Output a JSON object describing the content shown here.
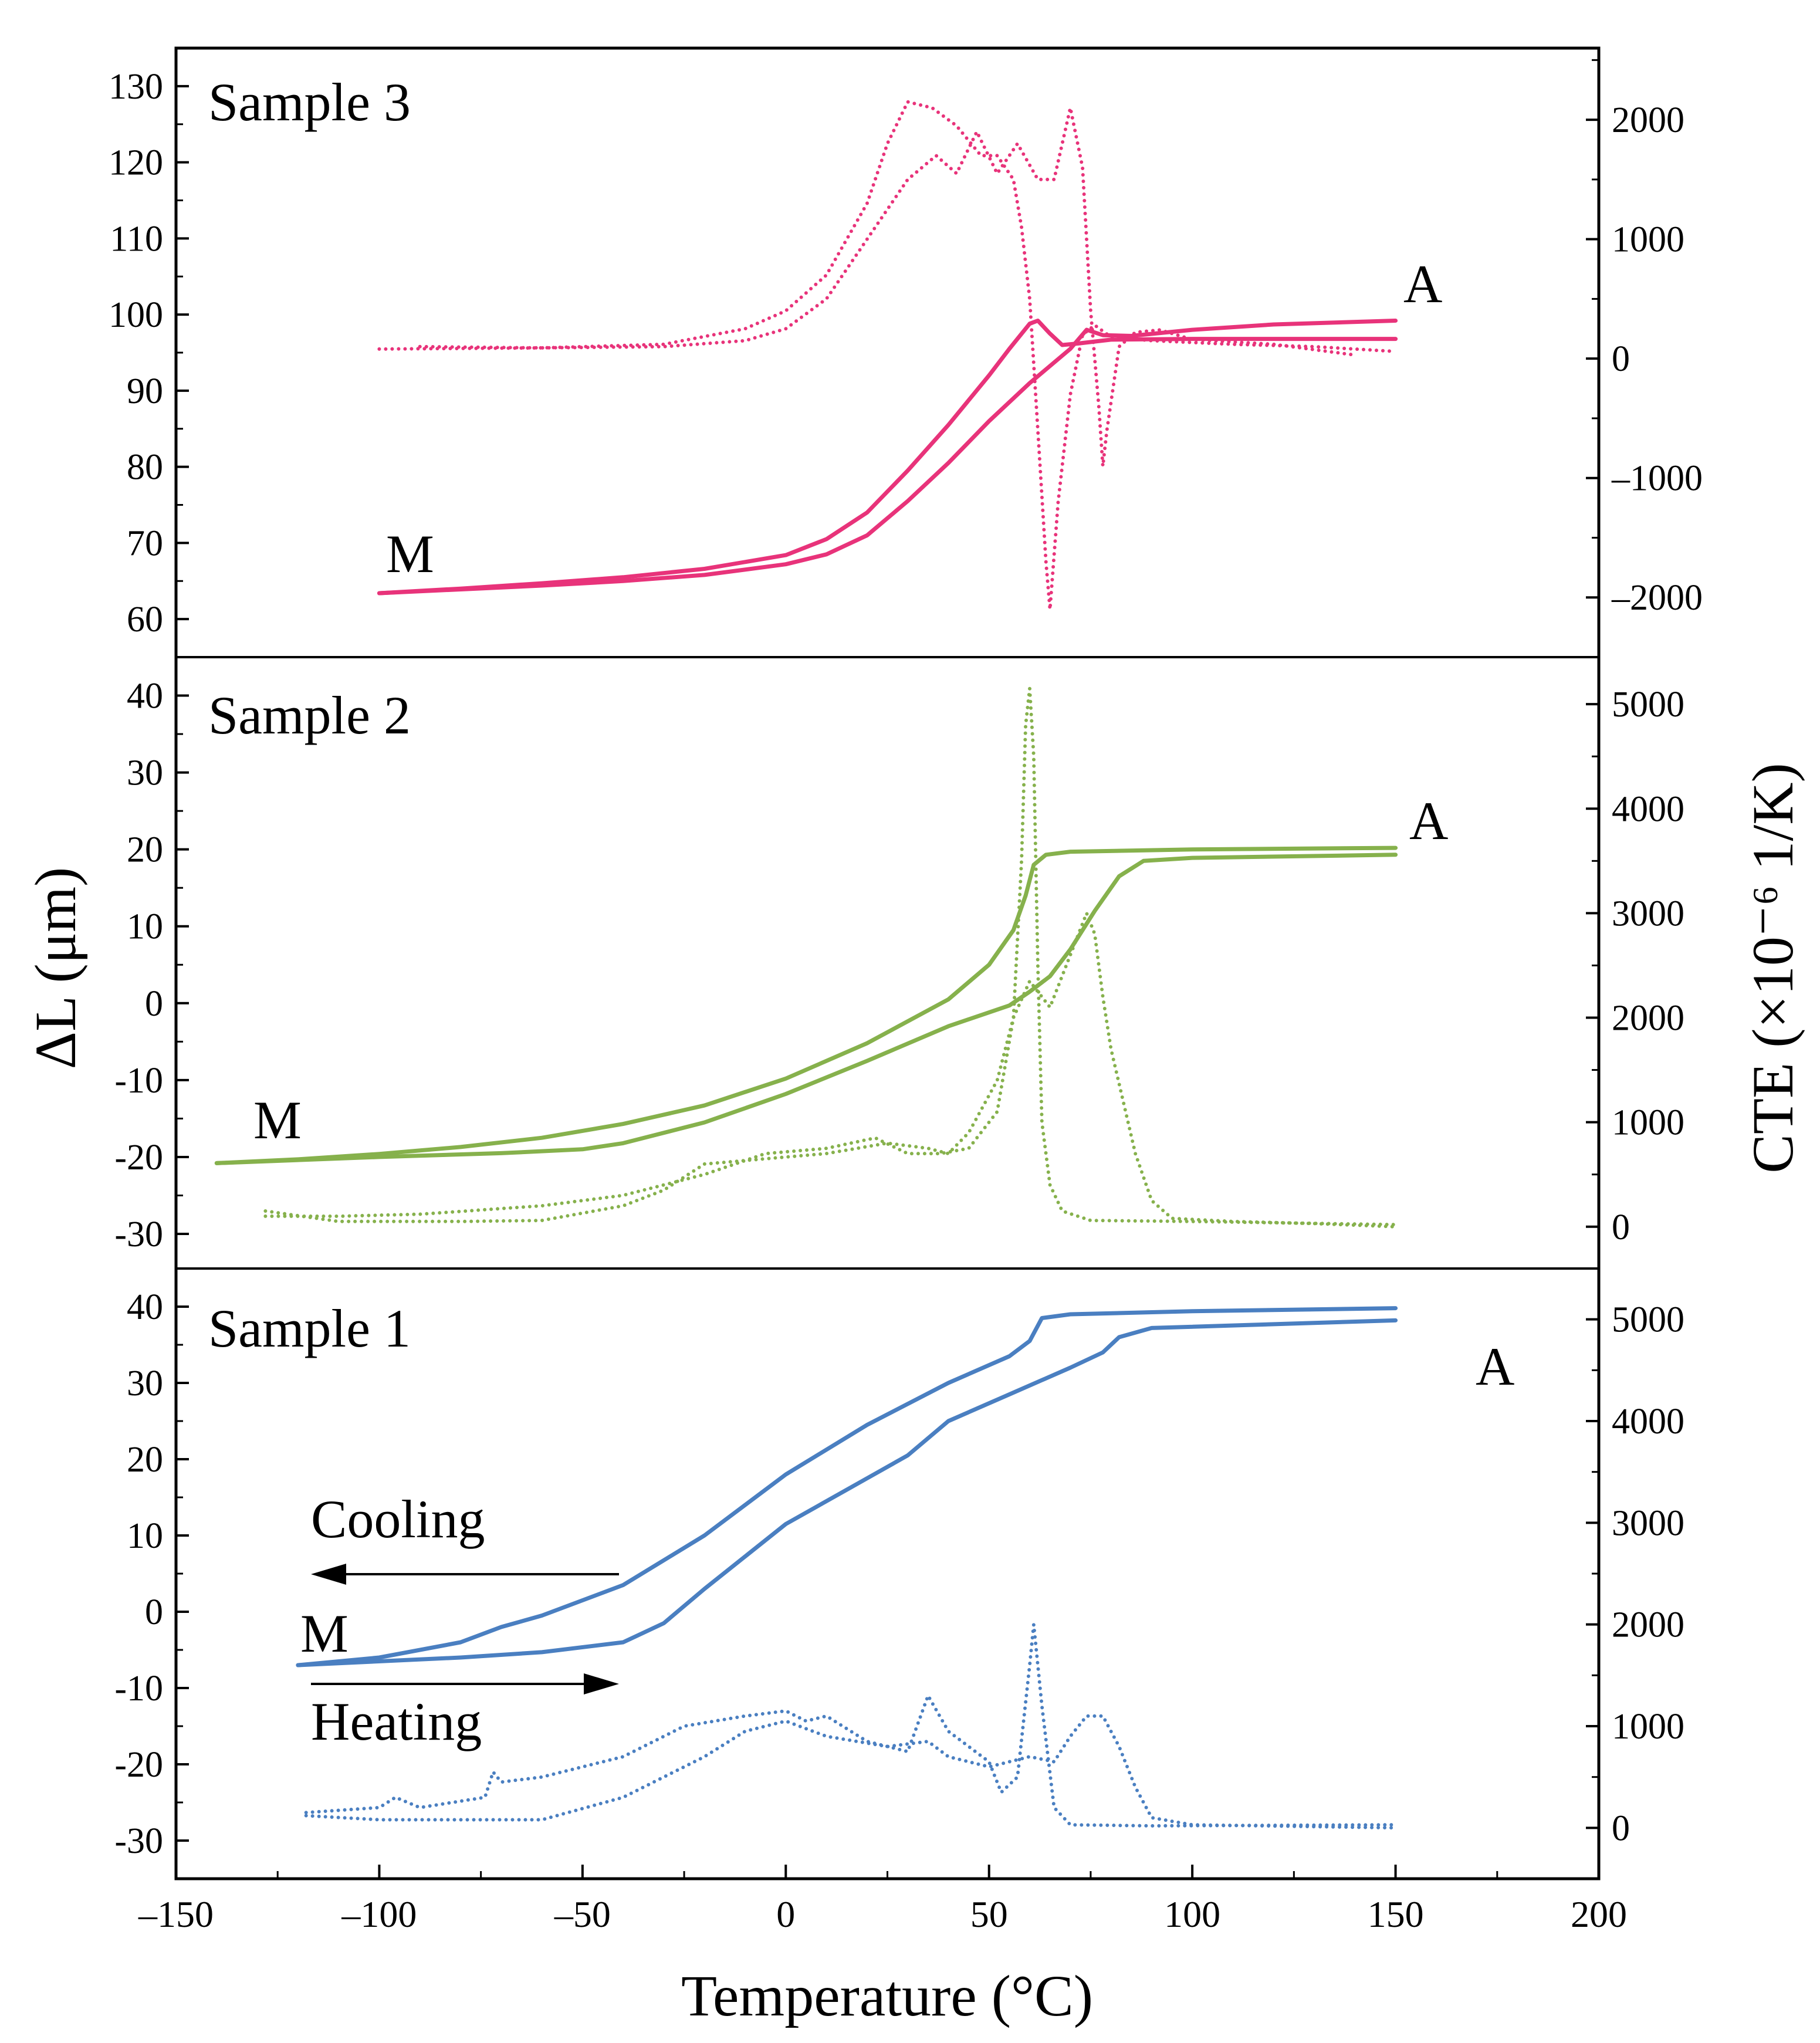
{
  "chart_data": {
    "type": "line",
    "xlabel": "Temperature (°C)",
    "xlim": [
      -150,
      200
    ],
    "xticks": [
      -150,
      -100,
      -50,
      0,
      50,
      100,
      150,
      200
    ],
    "xtick_labels": [
      "–150",
      "–100",
      "–50",
      "0",
      "50",
      "100",
      "150",
      "200"
    ],
    "ylabel_left": "ΔL (μm)",
    "ylabel_right": "CTE (×10⁻⁶ 1/K)",
    "annotations": {
      "cooling": "Cooling",
      "heating": "Heating"
    },
    "panels": [
      {
        "key": "s3",
        "title": "Sample 3",
        "color": "#e8337a",
        "label_M": "M",
        "label_A": "A",
        "ylim_left": [
          55,
          135
        ],
        "yticks_left": [
          60,
          70,
          80,
          90,
          100,
          110,
          120,
          130
        ],
        "ylim_right": [
          -2500,
          2600
        ],
        "yticks_right": [
          -2000,
          -1000,
          0,
          1000,
          2000
        ],
        "ytick_labels_right": [
          "–2000",
          "–1000",
          "0",
          "1000",
          "2000"
        ],
        "dl_cooling": [
          [
            -100,
            63.4
          ],
          [
            -80,
            64.0
          ],
          [
            -60,
            64.7
          ],
          [
            -40,
            65.5
          ],
          [
            -20,
            66.6
          ],
          [
            0,
            68.4
          ],
          [
            10,
            70.5
          ],
          [
            20,
            74.0
          ],
          [
            30,
            79.5
          ],
          [
            40,
            85.5
          ],
          [
            50,
            92.0
          ],
          [
            55,
            95.5
          ],
          [
            60,
            98.8
          ],
          [
            62,
            99.2
          ],
          [
            65,
            97.5
          ],
          [
            68,
            96.0
          ],
          [
            72,
            96.2
          ],
          [
            80,
            96.7
          ],
          [
            100,
            96.8
          ],
          [
            150,
            96.8
          ]
        ],
        "dl_heating": [
          [
            -100,
            63.4
          ],
          [
            -60,
            64.4
          ],
          [
            -40,
            65.0
          ],
          [
            -20,
            65.8
          ],
          [
            0,
            67.2
          ],
          [
            10,
            68.5
          ],
          [
            20,
            71.0
          ],
          [
            30,
            75.5
          ],
          [
            40,
            80.5
          ],
          [
            50,
            86.0
          ],
          [
            60,
            91.0
          ],
          [
            70,
            95.5
          ],
          [
            74,
            98.0
          ],
          [
            78,
            97.3
          ],
          [
            85,
            97.2
          ],
          [
            100,
            98.0
          ],
          [
            120,
            98.7
          ],
          [
            150,
            99.2
          ]
        ],
        "cte_cooling": [
          [
            -100,
            80
          ],
          [
            -60,
            90
          ],
          [
            -30,
            120
          ],
          [
            -10,
            250
          ],
          [
            0,
            400
          ],
          [
            10,
            700
          ],
          [
            20,
            1300
          ],
          [
            25,
            1800
          ],
          [
            30,
            2150
          ],
          [
            36,
            2100
          ],
          [
            42,
            1950
          ],
          [
            48,
            1700
          ],
          [
            52,
            1700
          ],
          [
            56,
            1500
          ],
          [
            58,
            1100
          ],
          [
            60,
            500
          ],
          [
            62,
            -600
          ],
          [
            64,
            -1700
          ],
          [
            65,
            -2100
          ],
          [
            67,
            -1200
          ],
          [
            70,
            -300
          ],
          [
            73,
            200
          ],
          [
            76,
            280
          ],
          [
            80,
            180
          ],
          [
            90,
            150
          ],
          [
            110,
            120
          ],
          [
            130,
            100
          ],
          [
            150,
            60
          ]
        ],
        "cte_heating": [
          [
            -90,
            100
          ],
          [
            -60,
            90
          ],
          [
            -30,
            100
          ],
          [
            -10,
            150
          ],
          [
            0,
            250
          ],
          [
            10,
            500
          ],
          [
            20,
            1000
          ],
          [
            30,
            1500
          ],
          [
            37,
            1700
          ],
          [
            42,
            1550
          ],
          [
            47,
            1900
          ],
          [
            52,
            1550
          ],
          [
            57,
            1800
          ],
          [
            62,
            1500
          ],
          [
            66,
            1500
          ],
          [
            70,
            2100
          ],
          [
            73,
            1600
          ],
          [
            75,
            400
          ],
          [
            77,
            -400
          ],
          [
            78,
            -900
          ],
          [
            79,
            -600
          ],
          [
            82,
            100
          ],
          [
            86,
            220
          ],
          [
            92,
            240
          ],
          [
            100,
            160
          ],
          [
            120,
            120
          ],
          [
            140,
            30
          ]
        ]
      },
      {
        "key": "s2",
        "title": "Sample 2",
        "color": "#86b14c",
        "label_M": "M",
        "label_A": "A",
        "ylim_left": [
          -34.5,
          45
        ],
        "yticks_left": [
          -30,
          -20,
          -10,
          0,
          10,
          20,
          30,
          40
        ],
        "ylim_right": [
          -400,
          5450
        ],
        "yticks_right": [
          0,
          1000,
          2000,
          3000,
          4000,
          5000
        ],
        "ytick_labels_right": [
          "0",
          "1000",
          "2000",
          "3000",
          "4000",
          "5000"
        ],
        "dl_cooling": [
          [
            -140,
            -20.8
          ],
          [
            -120,
            -20.3
          ],
          [
            -100,
            -19.6
          ],
          [
            -80,
            -18.7
          ],
          [
            -60,
            -17.5
          ],
          [
            -40,
            -15.7
          ],
          [
            -20,
            -13.3
          ],
          [
            0,
            -9.8
          ],
          [
            20,
            -5.2
          ],
          [
            40,
            0.5
          ],
          [
            50,
            5.0
          ],
          [
            56,
            9.5
          ],
          [
            59,
            14.0
          ],
          [
            61,
            18.0
          ],
          [
            64,
            19.3
          ],
          [
            70,
            19.7
          ],
          [
            100,
            20.0
          ],
          [
            150,
            20.2
          ]
        ],
        "dl_heating": [
          [
            -140,
            -20.8
          ],
          [
            -100,
            -20.0
          ],
          [
            -70,
            -19.5
          ],
          [
            -50,
            -19.0
          ],
          [
            -40,
            -18.2
          ],
          [
            -20,
            -15.5
          ],
          [
            0,
            -11.8
          ],
          [
            20,
            -7.5
          ],
          [
            40,
            -3.0
          ],
          [
            55,
            -0.3
          ],
          [
            60,
            1.5
          ],
          [
            65,
            3.5
          ],
          [
            70,
            7.0
          ],
          [
            76,
            12.0
          ],
          [
            82,
            16.5
          ],
          [
            88,
            18.5
          ],
          [
            100,
            18.9
          ],
          [
            150,
            19.3
          ]
        ],
        "cte_cooling": [
          [
            -128,
            100
          ],
          [
            -110,
            100
          ],
          [
            -90,
            120
          ],
          [
            -60,
            200
          ],
          [
            -40,
            300
          ],
          [
            -30,
            400
          ],
          [
            -20,
            500
          ],
          [
            -5,
            700
          ],
          [
            10,
            750
          ],
          [
            22,
            850
          ],
          [
            30,
            700
          ],
          [
            38,
            700
          ],
          [
            45,
            750
          ],
          [
            52,
            1100
          ],
          [
            56,
            2000
          ],
          [
            58,
            3500
          ],
          [
            59,
            4800
          ],
          [
            60,
            5150
          ],
          [
            61,
            4500
          ],
          [
            62,
            2500
          ],
          [
            63,
            1000
          ],
          [
            65,
            400
          ],
          [
            68,
            150
          ],
          [
            75,
            60
          ],
          [
            100,
            50
          ],
          [
            150,
            20
          ]
        ],
        "cte_heating": [
          [
            -128,
            150
          ],
          [
            -110,
            50
          ],
          [
            -80,
            50
          ],
          [
            -60,
            60
          ],
          [
            -40,
            200
          ],
          [
            -30,
            350
          ],
          [
            -20,
            600
          ],
          [
            -5,
            650
          ],
          [
            10,
            700
          ],
          [
            25,
            800
          ],
          [
            35,
            750
          ],
          [
            40,
            700
          ],
          [
            45,
            900
          ],
          [
            52,
            1400
          ],
          [
            56,
            2000
          ],
          [
            60,
            2350
          ],
          [
            65,
            2100
          ],
          [
            70,
            2600
          ],
          [
            74,
            3000
          ],
          [
            76,
            2800
          ],
          [
            78,
            2200
          ],
          [
            80,
            1700
          ],
          [
            83,
            1200
          ],
          [
            86,
            700
          ],
          [
            90,
            250
          ],
          [
            95,
            80
          ],
          [
            110,
            50
          ],
          [
            130,
            30
          ],
          [
            150,
            0
          ]
        ]
      },
      {
        "key": "s1",
        "title": "Sample 1",
        "color": "#4a7fc1",
        "label_M": "M",
        "label_A": "A",
        "ylim_left": [
          -35,
          45
        ],
        "yticks_left": [
          -30,
          -20,
          -10,
          0,
          10,
          20,
          30,
          40
        ],
        "ylim_right": [
          -500,
          5500
        ],
        "yticks_right": [
          0,
          1000,
          2000,
          3000,
          4000,
          5000
        ],
        "ytick_labels_right": [
          "0",
          "1000",
          "2000",
          "3000",
          "4000",
          "5000"
        ],
        "dl_cooling": [
          [
            -120,
            -7.0
          ],
          [
            -100,
            -6.0
          ],
          [
            -80,
            -4.0
          ],
          [
            -70,
            -2.0
          ],
          [
            -60,
            -0.5
          ],
          [
            -40,
            3.5
          ],
          [
            -20,
            10.0
          ],
          [
            0,
            18.0
          ],
          [
            20,
            24.5
          ],
          [
            40,
            30.0
          ],
          [
            55,
            33.5
          ],
          [
            60,
            35.5
          ],
          [
            63,
            38.5
          ],
          [
            70,
            39.0
          ],
          [
            100,
            39.4
          ],
          [
            150,
            39.8
          ]
        ],
        "dl_heating": [
          [
            -120,
            -7.0
          ],
          [
            -80,
            -6.0
          ],
          [
            -60,
            -5.3
          ],
          [
            -40,
            -4.0
          ],
          [
            -30,
            -1.5
          ],
          [
            -20,
            3.0
          ],
          [
            0,
            11.5
          ],
          [
            20,
            17.5
          ],
          [
            30,
            20.5
          ],
          [
            40,
            25.0
          ],
          [
            55,
            28.5
          ],
          [
            70,
            32.0
          ],
          [
            78,
            34.0
          ],
          [
            82,
            36.0
          ],
          [
            90,
            37.2
          ],
          [
            150,
            38.2
          ]
        ],
        "cte_cooling": [
          [
            -118,
            150
          ],
          [
            -100,
            200
          ],
          [
            -96,
            300
          ],
          [
            -90,
            200
          ],
          [
            -74,
            300
          ],
          [
            -72,
            550
          ],
          [
            -70,
            450
          ],
          [
            -60,
            500
          ],
          [
            -40,
            700
          ],
          [
            -25,
            1000
          ],
          [
            -10,
            1100
          ],
          [
            0,
            1150
          ],
          [
            5,
            1050
          ],
          [
            10,
            1100
          ],
          [
            20,
            850
          ],
          [
            30,
            750
          ],
          [
            35,
            1300
          ],
          [
            40,
            950
          ],
          [
            50,
            650
          ],
          [
            53,
            350
          ],
          [
            57,
            500
          ],
          [
            60,
            1600
          ],
          [
            61,
            2000
          ],
          [
            63,
            1200
          ],
          [
            66,
            200
          ],
          [
            70,
            30
          ],
          [
            90,
            20
          ],
          [
            150,
            30
          ]
        ],
        "cte_heating": [
          [
            -118,
            120
          ],
          [
            -100,
            80
          ],
          [
            -60,
            80
          ],
          [
            -40,
            300
          ],
          [
            -20,
            700
          ],
          [
            -10,
            950
          ],
          [
            0,
            1050
          ],
          [
            10,
            900
          ],
          [
            25,
            800
          ],
          [
            35,
            850
          ],
          [
            40,
            700
          ],
          [
            50,
            600
          ],
          [
            60,
            700
          ],
          [
            66,
            650
          ],
          [
            70,
            900
          ],
          [
            74,
            1100
          ],
          [
            78,
            1100
          ],
          [
            82,
            800
          ],
          [
            86,
            400
          ],
          [
            90,
            100
          ],
          [
            100,
            30
          ],
          [
            150,
            0
          ]
        ]
      }
    ]
  }
}
